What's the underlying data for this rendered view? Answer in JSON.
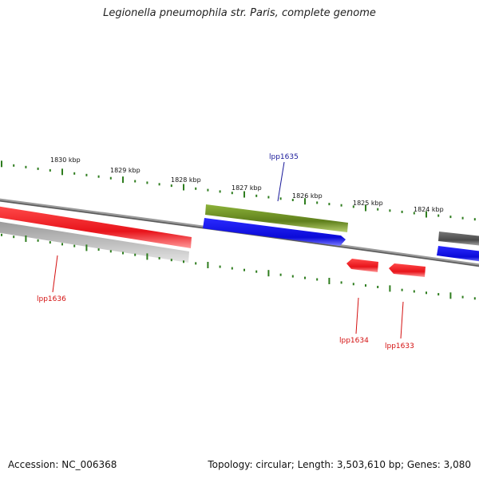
{
  "title": "Legionella pneumophila str. Paris, complete genome",
  "footer": {
    "accession": "Accession: NC_006368",
    "summary": "Topology: circular; Length: 3,503,610 bp; Genes: 3,080"
  },
  "colors": {
    "backbone": "#7a7a7a",
    "tick": "#2e7d1e",
    "forward_cds": "#2020ff",
    "reverse_cds": "#e8141b",
    "rna": "#6b8e23",
    "other_dark": "#555555",
    "other_light": "#b8b8b8"
  },
  "scale_labels": [
    "1830 kbp",
    "1829 kbp",
    "1828 kbp",
    "1827 kbp",
    "1826 kbp",
    "1825 kbp",
    "1824 kbp"
  ],
  "gene_labels": [
    {
      "text": "lpp1635",
      "color": "#1a1a9a"
    },
    {
      "text": "lpp1636",
      "color": "#d41010"
    },
    {
      "text": "lpp1634",
      "color": "#d41010"
    },
    {
      "text": "lpp1633",
      "color": "#d41010"
    }
  ]
}
